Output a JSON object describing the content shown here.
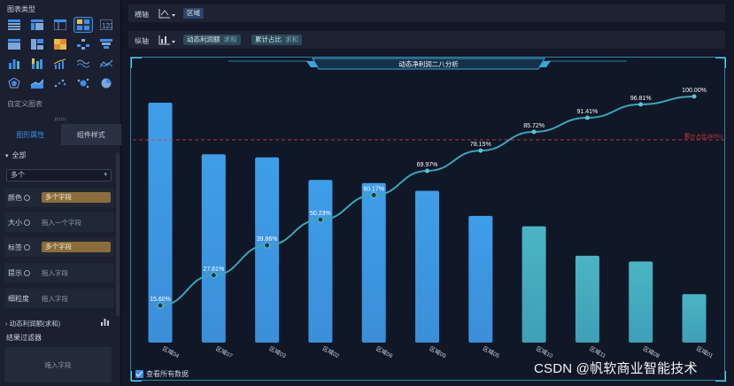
{
  "left_panel": {
    "title": "图表类型",
    "custom_chart_label": "自定义图表",
    "tabs": {
      "property": "图形属性",
      "style": "组件样式"
    },
    "all_label": "全部",
    "select_value": "多个",
    "rows": {
      "color": {
        "label": "颜色",
        "value": "多个字段"
      },
      "size": {
        "label": "大小",
        "placeholder": "拖入一个字段"
      },
      "tag": {
        "label": "标签",
        "value": "多个字段"
      },
      "tooltip": {
        "label": "提示",
        "placeholder": "拖入字段"
      },
      "granularity": {
        "label": "细粒度",
        "placeholder": "拖入字段"
      }
    },
    "measure_label": "动态利润额(求和)",
    "filter": {
      "title": "结果过滤器",
      "placeholder": "拖入字段"
    }
  },
  "axes": {
    "horizontal": {
      "label": "横轴",
      "field": "区域"
    },
    "vertical": {
      "label": "纵轴",
      "fields": [
        {
          "name": "动态利润额",
          "agg": "求和"
        },
        {
          "name": "累计占比",
          "agg": "求和"
        }
      ]
    }
  },
  "chart": {
    "show_all_label": "查看所有数据"
  },
  "chart_data": {
    "type": "bar",
    "title": "动态净利润二八分析",
    "categories": [
      "区域04",
      "区域07",
      "区域03",
      "区域02",
      "区域06",
      "区域09",
      "区域05",
      "区域10",
      "区域11",
      "区域08",
      "区域01"
    ],
    "series": [
      {
        "type": "bar",
        "values": [
          100,
          78.5,
          77.2,
          67.8,
          66.5,
          63.3,
          52.8,
          48.5,
          36.2,
          33.8,
          20.2
        ]
      },
      {
        "type": "line",
        "values": [
          15.6,
          27.81,
          39.86,
          50.23,
          60.17,
          69.97,
          78.15,
          85.72,
          91.41,
          96.81,
          100.0
        ],
        "labels": [
          "15.60%",
          "27.81%",
          "39.86%",
          "50.23%",
          "60.17%",
          "69.97%",
          "78.15%",
          "85.72%",
          "91.41%",
          "96.81%",
          "100.00%"
        ]
      }
    ],
    "reference_line": {
      "value": 80,
      "label": "累计占比(80%)",
      "color": "#d23a3a"
    },
    "ylim": [
      0,
      100
    ],
    "bar_colors": {
      "blue": "#3e9ee8",
      "teal": "#4ab5c4"
    },
    "line_color": "#3aa7b4",
    "grid": false
  },
  "watermark": "CSDN @帆软商业智能技术"
}
